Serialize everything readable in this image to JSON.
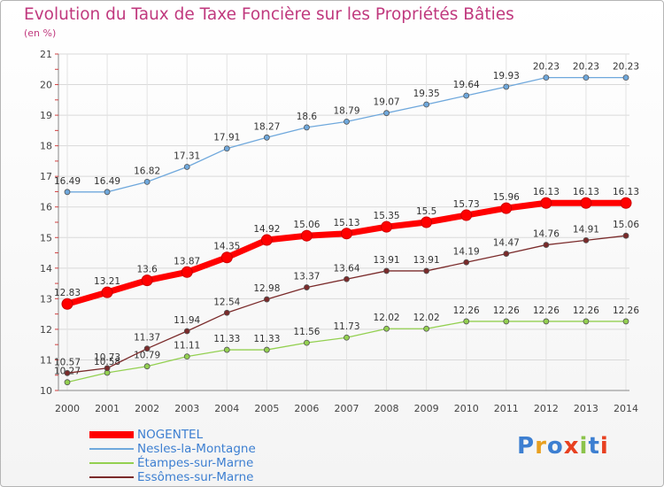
{
  "title": "Evolution du Taux de Taxe Foncière sur les Propriétés Bâties",
  "unit": "(en %)",
  "logo": "Proxiti",
  "colors": {
    "title": "#c0397e",
    "legend_text": "#3d7fd1",
    "grid": "#dddddd",
    "axis": "#555555"
  },
  "chart_data": {
    "type": "line",
    "title": "Evolution du Taux de Taxe Foncière sur les Propriétés Bâties",
    "ylabel": "(en %)",
    "xlabel": "",
    "x": [
      "2000",
      "2001",
      "2002",
      "2003",
      "2004",
      "2005",
      "2006",
      "2007",
      "2008",
      "2009",
      "2010",
      "2011",
      "2012",
      "2013",
      "2014"
    ],
    "ylim": [
      10,
      21
    ],
    "yticks": [
      10,
      11,
      12,
      13,
      14,
      15,
      16,
      17,
      18,
      19,
      20,
      21
    ],
    "grid": true,
    "legend_position": "bottom-left",
    "series": [
      {
        "name": "NOGENTEL",
        "color": "#ff0000",
        "values": [
          12.83,
          13.21,
          13.6,
          13.87,
          14.35,
          14.92,
          15.06,
          15.13,
          15.35,
          15.5,
          15.73,
          15.96,
          16.13,
          16.13,
          16.13
        ],
        "labels": [
          "12.83",
          "13.21",
          "13.6",
          "13.87",
          "14.35",
          "14.92",
          "15.06",
          "15.13",
          "15.35",
          "15.5",
          "15.73",
          "15.96",
          "16.13",
          "16.13",
          "16.13"
        ]
      },
      {
        "name": "Nesles-la-Montagne",
        "color": "#6fa8dc",
        "values": [
          16.49,
          16.49,
          16.82,
          17.31,
          17.91,
          18.27,
          18.6,
          18.79,
          19.07,
          19.35,
          19.64,
          19.93,
          20.23,
          20.23,
          20.23
        ],
        "labels": [
          "16.49",
          "16.49",
          "16.82",
          "17.31",
          "17.91",
          "18.27",
          "18.6",
          "18.79",
          "19.07",
          "19.35",
          "19.64",
          "19.93",
          "20.23",
          "20.23",
          "20.23"
        ]
      },
      {
        "name": "Étampes-sur-Marne",
        "color": "#93d050",
        "values": [
          10.27,
          10.58,
          10.79,
          11.11,
          11.33,
          11.33,
          11.56,
          11.73,
          12.02,
          12.02,
          12.26,
          12.26,
          12.26,
          12.26,
          12.26
        ],
        "labels": [
          "10.27",
          "10.58",
          "10.79",
          "11.11",
          "11.33",
          "11.33",
          "11.56",
          "11.73",
          "12.02",
          "12.02",
          "12.26",
          "12.26",
          "12.26",
          "12.26",
          "12.26"
        ]
      },
      {
        "name": "Essômes-sur-Marne",
        "color": "#7a2a2a",
        "values": [
          10.57,
          10.73,
          11.37,
          11.94,
          12.54,
          12.98,
          13.37,
          13.64,
          13.91,
          13.91,
          14.19,
          14.47,
          14.76,
          14.91,
          15.06
        ],
        "labels": [
          "10.57",
          "10.73",
          "11.37",
          "11.94",
          "12.54",
          "12.98",
          "13.37",
          "13.64",
          "13.91",
          "13.91",
          "14.19",
          "14.47",
          "14.76",
          "14.91",
          "15.06"
        ]
      }
    ]
  }
}
